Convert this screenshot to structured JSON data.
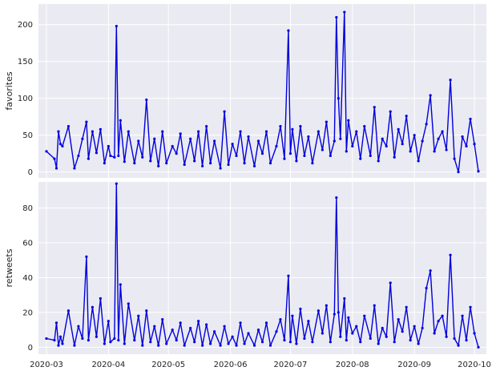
{
  "chart_data": [
    {
      "type": "line",
      "ylabel": "favorites",
      "xlabel": "",
      "ylim": [
        -8,
        228
      ],
      "xlim": [
        "2020-02-26",
        "2020-10-07"
      ],
      "yticks": [
        0,
        50,
        100,
        150,
        200
      ],
      "grid": true,
      "series": [
        {
          "color": "#0000dd",
          "marker": "dot",
          "x": [
            "2020-03-01",
            "2020-03-05",
            "2020-03-06",
            "2020-03-07",
            "2020-03-08",
            "2020-03-09",
            "2020-03-12",
            "2020-03-15",
            "2020-03-17",
            "2020-03-19",
            "2020-03-21",
            "2020-03-22",
            "2020-03-24",
            "2020-03-26",
            "2020-03-28",
            "2020-03-30",
            "2020-04-01",
            "2020-04-02",
            "2020-04-04",
            "2020-04-05",
            "2020-04-06",
            "2020-04-07",
            "2020-04-09",
            "2020-04-11",
            "2020-04-14",
            "2020-04-16",
            "2020-04-18",
            "2020-04-20",
            "2020-04-22",
            "2020-04-24",
            "2020-04-26",
            "2020-04-28",
            "2020-04-30",
            "2020-05-03",
            "2020-05-05",
            "2020-05-07",
            "2020-05-09",
            "2020-05-12",
            "2020-05-14",
            "2020-05-16",
            "2020-05-18",
            "2020-05-20",
            "2020-05-22",
            "2020-05-24",
            "2020-05-27",
            "2020-05-29",
            "2020-05-31",
            "2020-06-02",
            "2020-06-04",
            "2020-06-06",
            "2020-06-08",
            "2020-06-10",
            "2020-06-13",
            "2020-06-15",
            "2020-06-17",
            "2020-06-19",
            "2020-06-21",
            "2020-06-24",
            "2020-06-26",
            "2020-06-28",
            "2020-06-30",
            "2020-07-01",
            "2020-07-02",
            "2020-07-04",
            "2020-07-06",
            "2020-07-08",
            "2020-07-10",
            "2020-07-12",
            "2020-07-15",
            "2020-07-17",
            "2020-07-19",
            "2020-07-21",
            "2020-07-23",
            "2020-07-24",
            "2020-07-25",
            "2020-07-26",
            "2020-07-28",
            "2020-07-29",
            "2020-07-30",
            "2020-08-01",
            "2020-08-03",
            "2020-08-05",
            "2020-08-07",
            "2020-08-10",
            "2020-08-12",
            "2020-08-14",
            "2020-08-16",
            "2020-08-18",
            "2020-08-20",
            "2020-08-22",
            "2020-08-24",
            "2020-08-26",
            "2020-08-28",
            "2020-08-30",
            "2020-09-01",
            "2020-09-03",
            "2020-09-05",
            "2020-09-07",
            "2020-09-09",
            "2020-09-11",
            "2020-09-13",
            "2020-09-15",
            "2020-09-17",
            "2020-09-19",
            "2020-09-21",
            "2020-09-23",
            "2020-09-25",
            "2020-09-27",
            "2020-09-29",
            "2020-10-01",
            "2020-10-03"
          ],
          "y": [
            28,
            18,
            5,
            55,
            38,
            35,
            62,
            5,
            22,
            45,
            68,
            18,
            55,
            26,
            58,
            12,
            35,
            22,
            20,
            198,
            22,
            70,
            14,
            55,
            12,
            42,
            20,
            98,
            15,
            45,
            8,
            55,
            12,
            35,
            25,
            52,
            10,
            45,
            15,
            55,
            8,
            62,
            12,
            42,
            5,
            82,
            10,
            38,
            22,
            55,
            12,
            48,
            8,
            42,
            25,
            55,
            12,
            35,
            62,
            18,
            192,
            25,
            58,
            15,
            62,
            22,
            48,
            12,
            55,
            30,
            68,
            22,
            42,
            210,
            100,
            45,
            217,
            28,
            70,
            35,
            55,
            18,
            62,
            22,
            88,
            15,
            45,
            35,
            82,
            20,
            58,
            38,
            76,
            28,
            50,
            15,
            42,
            65,
            104,
            28,
            45,
            55,
            30,
            125,
            18,
            0,
            48,
            35,
            72,
            38,
            1
          ]
        }
      ]
    },
    {
      "type": "line",
      "ylabel": "retweets",
      "xlabel": "",
      "ylim": [
        -4,
        95
      ],
      "xlim": [
        "2020-02-26",
        "2020-10-07"
      ],
      "yticks": [
        0,
        20,
        40,
        60,
        80
      ],
      "xticks": [
        "2020-03",
        "2020-04",
        "2020-05",
        "2020-06",
        "2020-07",
        "2020-08",
        "2020-09",
        "2020-10"
      ],
      "grid": true,
      "series": [
        {
          "color": "#0000dd",
          "marker": "dot",
          "x": [
            "2020-03-01",
            "2020-03-05",
            "2020-03-06",
            "2020-03-07",
            "2020-03-08",
            "2020-03-09",
            "2020-03-12",
            "2020-03-15",
            "2020-03-17",
            "2020-03-19",
            "2020-03-21",
            "2020-03-22",
            "2020-03-24",
            "2020-03-26",
            "2020-03-28",
            "2020-03-30",
            "2020-04-01",
            "2020-04-02",
            "2020-04-04",
            "2020-04-05",
            "2020-04-06",
            "2020-04-07",
            "2020-04-09",
            "2020-04-11",
            "2020-04-14",
            "2020-04-16",
            "2020-04-18",
            "2020-04-20",
            "2020-04-22",
            "2020-04-24",
            "2020-04-26",
            "2020-04-28",
            "2020-04-30",
            "2020-05-03",
            "2020-05-05",
            "2020-05-07",
            "2020-05-09",
            "2020-05-12",
            "2020-05-14",
            "2020-05-16",
            "2020-05-18",
            "2020-05-20",
            "2020-05-22",
            "2020-05-24",
            "2020-05-27",
            "2020-05-29",
            "2020-05-31",
            "2020-06-02",
            "2020-06-04",
            "2020-06-06",
            "2020-06-08",
            "2020-06-10",
            "2020-06-13",
            "2020-06-15",
            "2020-06-17",
            "2020-06-19",
            "2020-06-21",
            "2020-06-24",
            "2020-06-26",
            "2020-06-28",
            "2020-06-30",
            "2020-07-01",
            "2020-07-02",
            "2020-07-04",
            "2020-07-06",
            "2020-07-08",
            "2020-07-10",
            "2020-07-12",
            "2020-07-15",
            "2020-07-17",
            "2020-07-19",
            "2020-07-21",
            "2020-07-23",
            "2020-07-24",
            "2020-07-25",
            "2020-07-26",
            "2020-07-28",
            "2020-07-29",
            "2020-07-30",
            "2020-08-01",
            "2020-08-03",
            "2020-08-05",
            "2020-08-07",
            "2020-08-10",
            "2020-08-12",
            "2020-08-14",
            "2020-08-16",
            "2020-08-18",
            "2020-08-20",
            "2020-08-22",
            "2020-08-24",
            "2020-08-26",
            "2020-08-28",
            "2020-08-30",
            "2020-09-01",
            "2020-09-03",
            "2020-09-05",
            "2020-09-07",
            "2020-09-09",
            "2020-09-11",
            "2020-09-13",
            "2020-09-15",
            "2020-09-17",
            "2020-09-19",
            "2020-09-21",
            "2020-09-23",
            "2020-09-25",
            "2020-09-27",
            "2020-09-29",
            "2020-10-01",
            "2020-10-03"
          ],
          "y": [
            5,
            4,
            14,
            1,
            6,
            2,
            21,
            1,
            12,
            5,
            52,
            4,
            23,
            6,
            28,
            2,
            15,
            3,
            5,
            94,
            4,
            36,
            2,
            25,
            4,
            18,
            1,
            21,
            3,
            12,
            1,
            16,
            2,
            10,
            4,
            14,
            1,
            11,
            3,
            15,
            1,
            13,
            2,
            9,
            1,
            12,
            2,
            6,
            1,
            14,
            2,
            8,
            1,
            10,
            3,
            14,
            1,
            9,
            16,
            4,
            41,
            3,
            18,
            2,
            22,
            5,
            15,
            3,
            21,
            8,
            24,
            3,
            19,
            86,
            20,
            6,
            28,
            4,
            17,
            8,
            12,
            3,
            18,
            5,
            24,
            2,
            11,
            6,
            37,
            3,
            16,
            9,
            23,
            4,
            12,
            2,
            11,
            34,
            44,
            8,
            15,
            18,
            6,
            53,
            5,
            1,
            18,
            4,
            23,
            8,
            0
          ]
        }
      ]
    }
  ]
}
